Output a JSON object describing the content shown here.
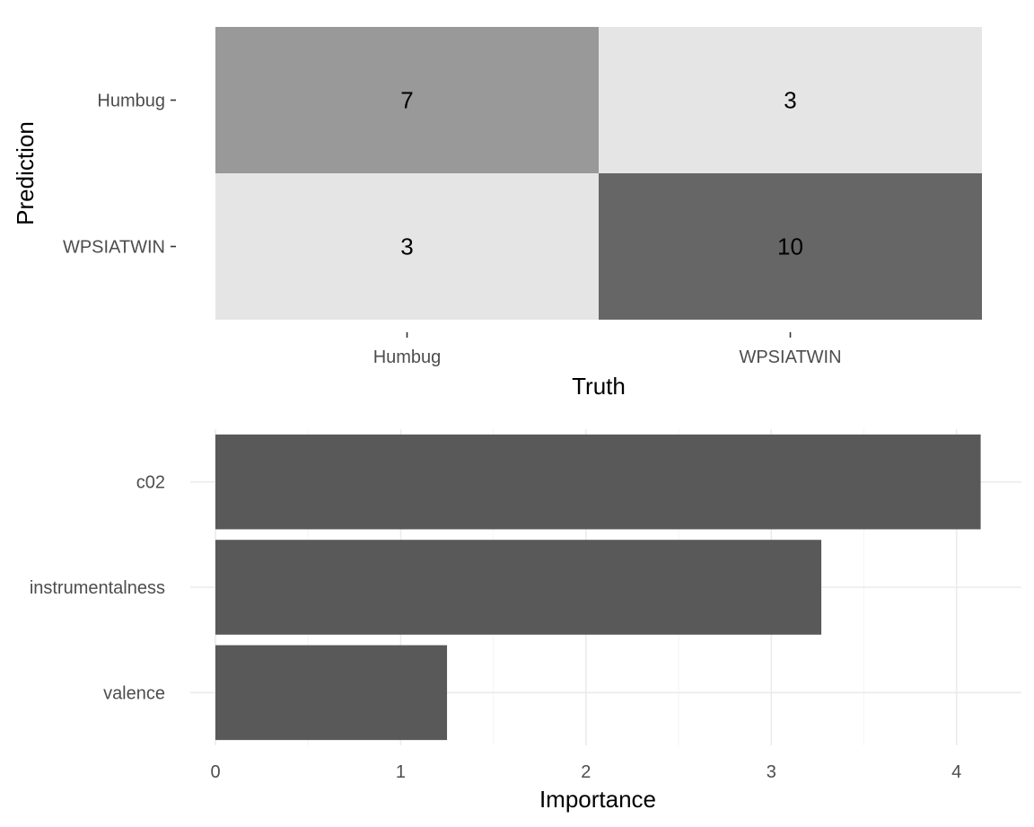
{
  "chart_data": [
    {
      "type": "heatmap",
      "title": "",
      "xlabel": "Truth",
      "ylabel": "Prediction",
      "x_categories": [
        "Humbug",
        "WPSIATWIN"
      ],
      "y_categories": [
        "Humbug",
        "WPSIATWIN"
      ],
      "cells": [
        {
          "truth": "Humbug",
          "prediction": "Humbug",
          "value": 7,
          "fill": "#999999"
        },
        {
          "truth": "WPSIATWIN",
          "prediction": "Humbug",
          "value": 3,
          "fill": "#e5e5e5"
        },
        {
          "truth": "Humbug",
          "prediction": "WPSIATWIN",
          "value": 3,
          "fill": "#e5e5e5"
        },
        {
          "truth": "WPSIATWIN",
          "prediction": "WPSIATWIN",
          "value": 10,
          "fill": "#666666"
        }
      ],
      "grid": false
    },
    {
      "type": "bar",
      "orientation": "horizontal",
      "title": "",
      "xlabel": "Importance",
      "ylabel": "",
      "categories": [
        "c02",
        "instrumentalness",
        "valence"
      ],
      "values": [
        4.13,
        3.27,
        1.25
      ],
      "xlim": [
        0,
        4.35
      ],
      "xticks": [
        "0",
        "1",
        "2",
        "3",
        "4"
      ],
      "bar_color": "#595959",
      "grid": true
    }
  ]
}
